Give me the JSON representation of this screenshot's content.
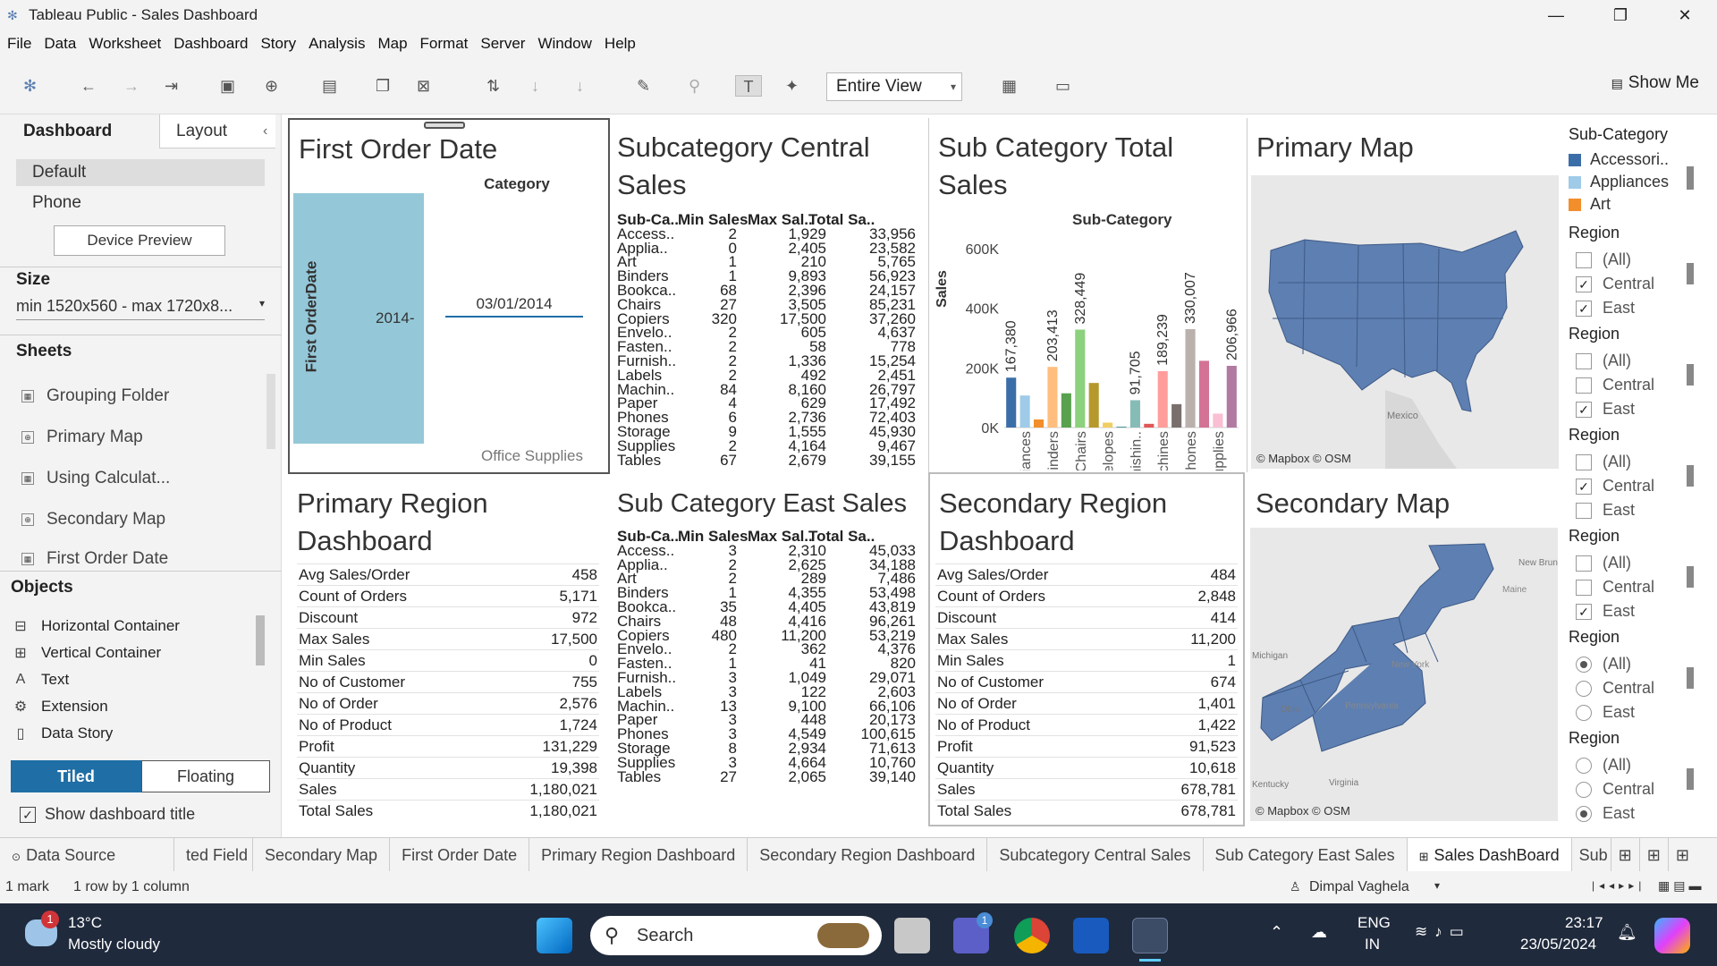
{
  "window": {
    "title": "Tableau Public - Sales Dashboard",
    "minimize": "—",
    "maximize": "❐",
    "close": "✕"
  },
  "menu": [
    "File",
    "Data",
    "Worksheet",
    "Dashboard",
    "Story",
    "Analysis",
    "Map",
    "Format",
    "Server",
    "Window",
    "Help"
  ],
  "toolbar": {
    "fit": "Entire View",
    "show_me": "Show Me"
  },
  "left": {
    "tabs": [
      "Dashboard",
      "Layout"
    ],
    "collapse": "‹",
    "devices": [
      "Default",
      "Phone"
    ],
    "device_preview": "Device Preview",
    "size_label": "Size",
    "size_value": "min 1520x560 - max 1720x8...",
    "sheets_label": "Sheets",
    "sheets": [
      "Grouping Folder",
      "Primary Map",
      "Using Calculat...",
      "Secondary Map",
      "First Order Date"
    ],
    "objects_label": "Objects",
    "objects": [
      "Horizontal Container",
      "Vertical Container",
      "Text",
      "Extension",
      "Data Story"
    ],
    "tiled": "Tiled",
    "floating": "Floating",
    "show_title": "Show dashboard title"
  },
  "first_order": {
    "title": "First Order Date",
    "col_header": "Category",
    "row_header": "First OrderDate",
    "year": "2014-",
    "date": "03/01/2014",
    "footer": "Office Supplies"
  },
  "subcat_central": {
    "title": "Subcategory Central Sales",
    "headers": [
      "Sub-Ca..",
      "Min Sales",
      "Max Sal..",
      "Total Sa.."
    ],
    "rows": [
      [
        "Access..",
        "2",
        "1,929",
        "33,956"
      ],
      [
        "Applia..",
        "0",
        "2,405",
        "23,582"
      ],
      [
        "Art",
        "1",
        "210",
        "5,765"
      ],
      [
        "Binders",
        "1",
        "9,893",
        "56,923"
      ],
      [
        "Bookca..",
        "68",
        "2,396",
        "24,157"
      ],
      [
        "Chairs",
        "27",
        "3,505",
        "85,231"
      ],
      [
        "Copiers",
        "320",
        "17,500",
        "37,260"
      ],
      [
        "Envelo..",
        "2",
        "605",
        "4,637"
      ],
      [
        "Fasten..",
        "2",
        "58",
        "778"
      ],
      [
        "Furnish..",
        "2",
        "1,336",
        "15,254"
      ],
      [
        "Labels",
        "2",
        "492",
        "2,451"
      ],
      [
        "Machin..",
        "84",
        "8,160",
        "26,797"
      ],
      [
        "Paper",
        "4",
        "629",
        "17,492"
      ],
      [
        "Phones",
        "6",
        "2,736",
        "72,403"
      ],
      [
        "Storage",
        "9",
        "1,555",
        "45,930"
      ],
      [
        "Supplies",
        "2",
        "4,164",
        "9,467"
      ],
      [
        "Tables",
        "67",
        "2,679",
        "39,155"
      ]
    ]
  },
  "subcat_total": {
    "title": "Sub Category Total Sales",
    "col_header": "Sub-Category",
    "ylabel": "Sales",
    "yticks": [
      "600K",
      "400K",
      "200K",
      "0K"
    ]
  },
  "chart_data": {
    "type": "bar",
    "title": "Sub Category Total Sales",
    "xlabel": "Sub-Category",
    "ylabel": "Sales",
    "ylim": [
      0,
      600000
    ],
    "categories": [
      "Accessories",
      "Appliances",
      "Art",
      "Binders",
      "Bookcases",
      "Chairs",
      "Copiers",
      "Envelopes",
      "Fasteners",
      "Furnishings",
      "Labels",
      "Machines",
      "Paper",
      "Phones",
      "Storage",
      "Supplies",
      "Tables"
    ],
    "tick_labels": [
      "Appliances",
      "Binders",
      "Chairs",
      "Envelopes",
      "Furnishin..",
      "Machines",
      "Phones",
      "Supplies"
    ],
    "values": [
      167380,
      107532,
      27118,
      203413,
      114880,
      328449,
      149528,
      16476,
      3024,
      91705,
      12486,
      189239,
      78479,
      330007,
      223844,
      46674,
      206966
    ],
    "data_labels": [
      {
        "i": 0,
        "text": "167,380"
      },
      {
        "i": 3,
        "text": "203,413"
      },
      {
        "i": 5,
        "text": "328,449"
      },
      {
        "i": 9,
        "text": "91,705"
      },
      {
        "i": 11,
        "text": "189,239"
      },
      {
        "i": 13,
        "text": "330,007"
      },
      {
        "i": 16,
        "text": "206,966"
      }
    ],
    "colors": [
      "#3b6ea8",
      "#9fcbe8",
      "#f28e2b",
      "#ffbe7d",
      "#59a14f",
      "#8cd17d",
      "#b6992d",
      "#f1ce63",
      "#499894",
      "#86bcb6",
      "#e15759",
      "#ff9d9a",
      "#79706e",
      "#bab0ac",
      "#d37295",
      "#fabfd2",
      "#b07aa1"
    ]
  },
  "primary_map": {
    "title": "Primary Map",
    "attribution": "© Mapbox © OSM",
    "label": "Mexico"
  },
  "primary_region": {
    "title": "Primary Region Dashboard",
    "rows": [
      [
        "Avg Sales/Order",
        "458"
      ],
      [
        "Count of Orders",
        "5,171"
      ],
      [
        "Discount",
        "972"
      ],
      [
        "Max Sales",
        "17,500"
      ],
      [
        "Min Sales",
        "0"
      ],
      [
        "No of Customer",
        "755"
      ],
      [
        "No of Order",
        "2,576"
      ],
      [
        "No of Product",
        "1,724"
      ],
      [
        "Profit",
        "131,229"
      ],
      [
        "Quantity",
        "19,398"
      ],
      [
        "Sales",
        "1,180,021"
      ],
      [
        "Total Sales",
        "1,180,021"
      ]
    ]
  },
  "subcat_east": {
    "title": "Sub Category East Sales",
    "headers": [
      "Sub-Ca..",
      "Min Sales",
      "Max Sal..",
      "Total Sa.."
    ],
    "rows": [
      [
        "Access..",
        "3",
        "2,310",
        "45,033"
      ],
      [
        "Applia..",
        "2",
        "2,625",
        "34,188"
      ],
      [
        "Art",
        "2",
        "289",
        "7,486"
      ],
      [
        "Binders",
        "1",
        "4,355",
        "53,498"
      ],
      [
        "Bookca..",
        "35",
        "4,405",
        "43,819"
      ],
      [
        "Chairs",
        "48",
        "4,416",
        "96,261"
      ],
      [
        "Copiers",
        "480",
        "11,200",
        "53,219"
      ],
      [
        "Envelo..",
        "2",
        "362",
        "4,376"
      ],
      [
        "Fasten..",
        "1",
        "41",
        "820"
      ],
      [
        "Furnish..",
        "3",
        "1,049",
        "29,071"
      ],
      [
        "Labels",
        "3",
        "122",
        "2,603"
      ],
      [
        "Machin..",
        "13",
        "9,100",
        "66,106"
      ],
      [
        "Paper",
        "3",
        "448",
        "20,173"
      ],
      [
        "Phones",
        "3",
        "4,549",
        "100,615"
      ],
      [
        "Storage",
        "8",
        "2,934",
        "71,613"
      ],
      [
        "Supplies",
        "3",
        "4,664",
        "10,760"
      ],
      [
        "Tables",
        "27",
        "2,065",
        "39,140"
      ]
    ]
  },
  "secondary_region": {
    "title": "Secondary Region Dashboard",
    "rows": [
      [
        "Avg Sales/Order",
        "484"
      ],
      [
        "Count of Orders",
        "2,848"
      ],
      [
        "Discount",
        "414"
      ],
      [
        "Max Sales",
        "11,200"
      ],
      [
        "Min Sales",
        "1"
      ],
      [
        "No of Customer",
        "674"
      ],
      [
        "No of Order",
        "1,401"
      ],
      [
        "No of Product",
        "1,422"
      ],
      [
        "Profit",
        "91,523"
      ],
      [
        "Quantity",
        "10,618"
      ],
      [
        "Sales",
        "678,781"
      ],
      [
        "Total Sales",
        "678,781"
      ]
    ]
  },
  "secondary_map": {
    "title": "Secondary Map",
    "attribution": "© Mapbox © OSM",
    "labels": [
      "Michigan",
      "Ohio",
      "Kentucky",
      "Virginia",
      "New York",
      "Pennsylvania",
      "Maine",
      "New Bruns"
    ]
  },
  "legend": {
    "title": "Sub-Category",
    "items": [
      {
        "label": "Accessori..",
        "color": "#3b6ea8"
      },
      {
        "label": "Appliances",
        "color": "#9fcbe8"
      },
      {
        "label": "Art",
        "color": "#f28e2b"
      }
    ]
  },
  "filters": [
    {
      "title": "Region",
      "type": "check",
      "opts": [
        [
          "(All)",
          false
        ],
        [
          "Central",
          true
        ],
        [
          "East",
          true
        ]
      ]
    },
    {
      "title": "Region",
      "type": "check",
      "opts": [
        [
          "(All)",
          false
        ],
        [
          "Central",
          false
        ],
        [
          "East",
          true
        ]
      ]
    },
    {
      "title": "Region",
      "type": "check",
      "opts": [
        [
          "(All)",
          false
        ],
        [
          "Central",
          true
        ],
        [
          "East",
          false
        ]
      ]
    },
    {
      "title": "Region",
      "type": "check",
      "opts": [
        [
          "(All)",
          false
        ],
        [
          "Central",
          false
        ],
        [
          "East",
          true
        ]
      ]
    },
    {
      "title": "Region",
      "type": "radio",
      "opts": [
        [
          "(All)",
          true
        ],
        [
          "Central",
          false
        ],
        [
          "East",
          false
        ]
      ]
    },
    {
      "title": "Region",
      "type": "radio",
      "opts": [
        [
          "(All)",
          false
        ],
        [
          "Central",
          false
        ],
        [
          "East",
          true
        ]
      ]
    }
  ],
  "sheet_tabs": [
    "Data Source",
    "ted Field",
    "Secondary Map",
    "First Order Date",
    "Primary Region Dashboard",
    "Secondary Region Dashboard",
    "Subcategory Central Sales",
    "Sub Category East Sales",
    "Sales DashBoard",
    "Sub"
  ],
  "status": {
    "marks": "1 mark",
    "dims": "1 row by 1 column",
    "user": "Dimpal Vaghela"
  },
  "taskbar": {
    "temp": "13°C",
    "weather": "Mostly cloudy",
    "badge": "1",
    "search": "Search",
    "lang1": "ENG",
    "lang2": "IN",
    "time": "23:17",
    "date": "23/05/2024",
    "teams_badge": "1"
  }
}
